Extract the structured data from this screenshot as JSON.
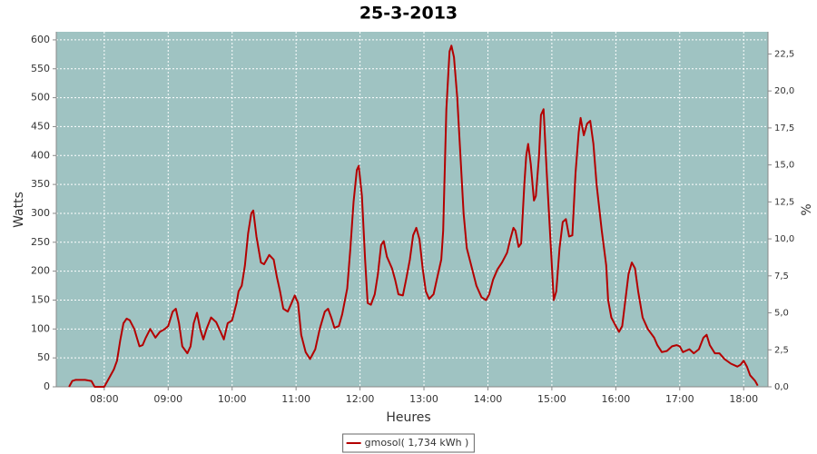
{
  "chart_data": {
    "type": "line",
    "title": "25-3-2013",
    "x_label": "Heures",
    "y_label": "Watts",
    "y2_label": "%",
    "xlim": [
      7.25,
      18.38
    ],
    "ylim": [
      0,
      614
    ],
    "y2lim": [
      0,
      24
    ],
    "xticks": [
      {
        "value": 8,
        "label": "08:00"
      },
      {
        "value": 9,
        "label": "09:00"
      },
      {
        "value": 10,
        "label": "10:00"
      },
      {
        "value": 11,
        "label": "11:00"
      },
      {
        "value": 12,
        "label": "12:00"
      },
      {
        "value": 13,
        "label": "13:00"
      },
      {
        "value": 14,
        "label": "14:00"
      },
      {
        "value": 15,
        "label": "15:00"
      },
      {
        "value": 16,
        "label": "16:00"
      },
      {
        "value": 17,
        "label": "17:00"
      },
      {
        "value": 18,
        "label": "18:00"
      }
    ],
    "yticks": [
      0,
      50,
      100,
      150,
      200,
      250,
      300,
      350,
      400,
      450,
      500,
      550,
      600
    ],
    "y2ticks": [
      {
        "value": 0,
        "label": "0,0"
      },
      {
        "value": 2.5,
        "label": "2,5"
      },
      {
        "value": 5,
        "label": "5,0"
      },
      {
        "value": 7.5,
        "label": "7,5"
      },
      {
        "value": 10,
        "label": "10,0"
      },
      {
        "value": 12.5,
        "label": "12,5"
      },
      {
        "value": 15,
        "label": "15,0"
      },
      {
        "value": 17.5,
        "label": "17,5"
      },
      {
        "value": 20,
        "label": "20,0"
      },
      {
        "value": 22.5,
        "label": "22,5"
      }
    ],
    "grid": true,
    "background": "#9fc3c2",
    "legend": "bottom",
    "x": [
      7.45,
      7.5,
      7.55,
      7.7,
      7.8,
      7.85,
      8.0,
      8.05,
      8.15,
      8.2,
      8.25,
      8.3,
      8.35,
      8.4,
      8.47,
      8.55,
      8.6,
      8.65,
      8.72,
      8.8,
      8.87,
      8.95,
      9.0,
      9.07,
      9.12,
      9.17,
      9.22,
      9.3,
      9.35,
      9.4,
      9.45,
      9.5,
      9.55,
      9.6,
      9.67,
      9.75,
      9.82,
      9.87,
      9.93,
      10.0,
      10.07,
      10.1,
      10.15,
      10.2,
      10.25,
      10.3,
      10.33,
      10.38,
      10.45,
      10.5,
      10.58,
      10.65,
      10.7,
      10.75,
      10.8,
      10.87,
      10.93,
      10.98,
      11.03,
      11.08,
      11.15,
      11.22,
      11.3,
      11.37,
      11.45,
      11.5,
      11.55,
      11.6,
      11.67,
      11.72,
      11.8,
      11.85,
      11.9,
      11.95,
      11.98,
      12.03,
      12.08,
      12.12,
      12.17,
      12.23,
      12.28,
      12.33,
      12.37,
      12.42,
      12.5,
      12.55,
      12.6,
      12.67,
      12.72,
      12.78,
      12.83,
      12.88,
      12.93,
      12.98,
      13.03,
      13.08,
      13.15,
      13.2,
      13.27,
      13.3,
      13.35,
      13.4,
      13.43,
      13.47,
      13.52,
      13.57,
      13.62,
      13.67,
      13.75,
      13.82,
      13.9,
      13.97,
      14.02,
      14.08,
      14.15,
      14.22,
      14.3,
      14.35,
      14.4,
      14.43,
      14.48,
      14.52,
      14.57,
      14.6,
      14.63,
      14.67,
      14.72,
      14.75,
      14.8,
      14.83,
      14.87,
      14.92,
      14.98,
      15.03,
      15.07,
      15.12,
      15.17,
      15.22,
      15.27,
      15.32,
      15.37,
      15.42,
      15.45,
      15.5,
      15.55,
      15.6,
      15.65,
      15.7,
      15.78,
      15.85,
      15.88,
      15.93,
      16.0,
      16.05,
      16.1,
      16.15,
      16.2,
      16.25,
      16.3,
      16.35,
      16.42,
      16.5,
      16.6,
      16.65,
      16.72,
      16.8,
      16.88,
      16.95,
      17.0,
      17.05,
      17.15,
      17.22,
      17.3,
      17.37,
      17.42,
      17.47,
      17.55,
      17.62,
      17.7,
      17.8,
      17.9,
      17.95,
      18.0,
      18.05,
      18.1,
      18.18,
      18.22
    ],
    "series": [
      {
        "name": "gmosol( 1,734 kWh )",
        "color": "#b40000",
        "values": [
          0,
          10,
          12,
          12,
          10,
          0,
          0,
          10,
          30,
          45,
          80,
          110,
          118,
          115,
          100,
          70,
          72,
          85,
          100,
          85,
          95,
          100,
          105,
          130,
          135,
          110,
          70,
          58,
          70,
          110,
          128,
          100,
          82,
          100,
          120,
          112,
          95,
          82,
          110,
          115,
          145,
          165,
          175,
          210,
          265,
          300,
          305,
          260,
          215,
          212,
          228,
          220,
          190,
          165,
          135,
          130,
          145,
          158,
          145,
          90,
          60,
          48,
          65,
          100,
          130,
          135,
          120,
          102,
          105,
          125,
          170,
          240,
          320,
          375,
          382,
          330,
          220,
          145,
          142,
          160,
          195,
          245,
          252,
          225,
          205,
          185,
          160,
          158,
          185,
          220,
          262,
          275,
          255,
          205,
          165,
          152,
          160,
          185,
          220,
          270,
          480,
          580,
          590,
          570,
          500,
          400,
          300,
          240,
          205,
          175,
          155,
          150,
          160,
          185,
          203,
          215,
          232,
          255,
          275,
          270,
          242,
          248,
          350,
          400,
          420,
          385,
          322,
          330,
          400,
          470,
          480,
          370,
          250,
          150,
          165,
          240,
          285,
          290,
          260,
          262,
          370,
          440,
          465,
          435,
          455,
          460,
          420,
          350,
          270,
          210,
          150,
          120,
          105,
          95,
          105,
          150,
          195,
          215,
          205,
          165,
          120,
          100,
          85,
          72,
          60,
          62,
          70,
          72,
          70,
          60,
          65,
          58,
          65,
          85,
          90,
          72,
          58,
          58,
          48,
          40,
          35,
          38,
          45,
          35,
          20,
          10,
          2
        ]
      }
    ]
  }
}
